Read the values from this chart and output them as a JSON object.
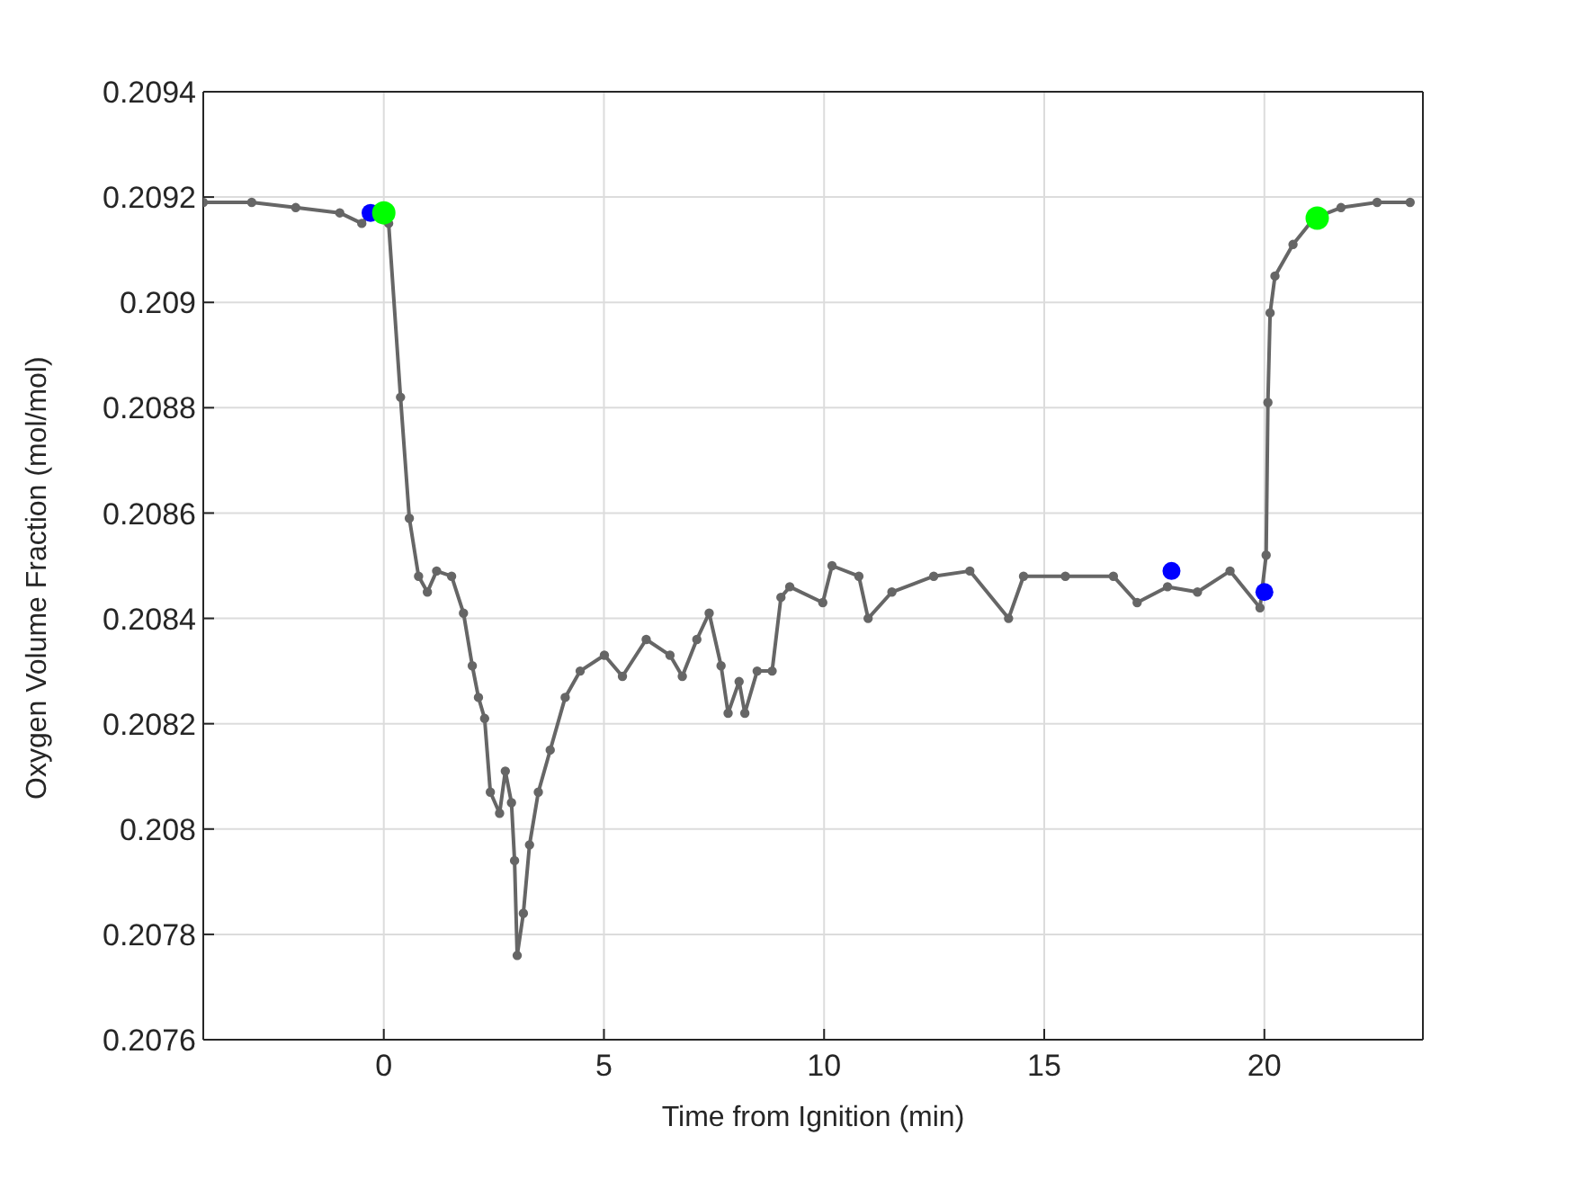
{
  "chart_data": {
    "type": "line",
    "xlabel": "Time from Ignition (min)",
    "ylabel": "Oxygen Volume Fraction (mol/mol)",
    "xlim": [
      -4.1,
      23.6
    ],
    "xticks": [
      0,
      5,
      10,
      15,
      20
    ],
    "ylim": [
      0.2076,
      0.2094
    ],
    "yticks": [
      0.2076,
      0.2078,
      0.208,
      0.2082,
      0.2084,
      0.2086,
      0.2088,
      0.209,
      0.2092,
      0.2094
    ],
    "grid": true,
    "marker": "circle",
    "line_style": "solid",
    "series": [
      {
        "color": "#666666",
        "x": [
          -4.1,
          -3,
          -2,
          -1,
          -0.5,
          -0.3,
          0,
          0.11,
          0.38,
          0.58,
          0.79,
          0.99,
          1.2,
          1.54,
          1.81,
          2.01,
          2.15,
          2.29,
          2.42,
          2.63,
          2.76,
          2.9,
          2.97,
          3.03,
          3.17,
          3.31,
          3.51,
          3.78,
          4.12,
          4.46,
          5.01,
          5.42,
          5.96,
          6.5,
          6.78,
          7.11,
          7.39,
          7.66,
          7.82,
          8.07,
          8.2,
          8.48,
          8.82,
          9.02,
          9.22,
          9.97,
          10.18,
          10.79,
          11.0,
          11.54,
          12.49,
          13.31,
          14.19,
          14.53,
          15.48,
          16.57,
          17.11,
          17.8,
          18.48,
          19.22,
          19.9,
          20.04,
          20.08,
          20.13,
          20.24,
          20.65,
          21.13,
          21.74,
          22.56,
          23.31
        ],
        "values": [
          0.20919,
          0.20919,
          0.20918,
          0.20917,
          0.20915,
          0.20917,
          0.20917,
          0.20915,
          0.20882,
          0.20859,
          0.20848,
          0.20845,
          0.20849,
          0.20848,
          0.20841,
          0.20831,
          0.20825,
          0.20821,
          0.20807,
          0.20803,
          0.20811,
          0.20805,
          0.20794,
          0.20776,
          0.20784,
          0.20797,
          0.20807,
          0.20815,
          0.20825,
          0.2083,
          0.20833,
          0.20829,
          0.20836,
          0.20833,
          0.20829,
          0.20836,
          0.20841,
          0.20831,
          0.20822,
          0.20828,
          0.20822,
          0.2083,
          0.2083,
          0.20844,
          0.20846,
          0.20843,
          0.2085,
          0.20848,
          0.2084,
          0.20845,
          0.20848,
          0.20849,
          0.2084,
          0.20848,
          0.20848,
          0.20848,
          0.20843,
          0.20846,
          0.20845,
          0.20849,
          0.20842,
          0.20852,
          0.20881,
          0.20898,
          0.20905,
          0.20911,
          0.20916,
          0.20918,
          0.20919,
          0.20919
        ]
      },
      {
        "type": "scatter",
        "color": "#0000ff",
        "x": [
          -0.3,
          17.89,
          20.0
        ],
        "values": [
          0.20917,
          0.20849,
          0.20845
        ]
      },
      {
        "type": "scatter",
        "color": "#00ff00",
        "x": [
          0,
          21.2
        ],
        "values": [
          0.20917,
          0.20916
        ]
      }
    ]
  }
}
